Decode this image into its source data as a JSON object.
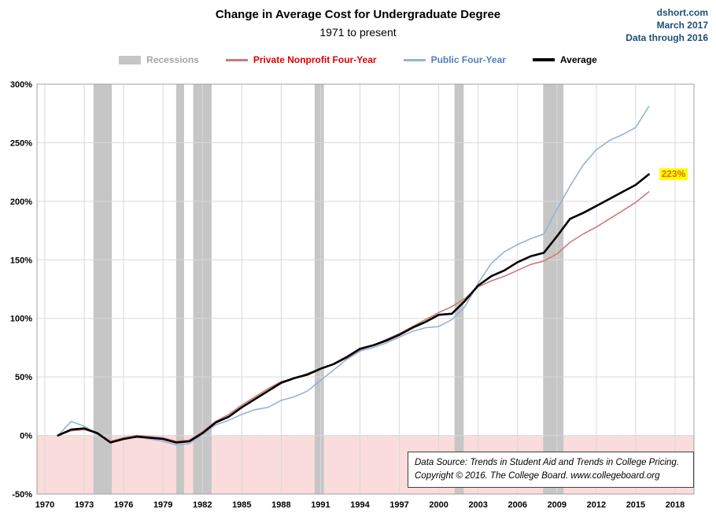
{
  "header": {
    "title": "Change in Average Cost for Undergraduate Degree",
    "subtitle": "1971 to present",
    "site": "dshort.com",
    "date": "March 2017",
    "note": "Data through 2016",
    "corner_color": "#1f4e79"
  },
  "legend": [
    {
      "label": "Recessions",
      "type": "band",
      "swatch_color": "#c6c6c6",
      "text_color": "#a6a6a6"
    },
    {
      "label": "Private Nonprofit Four-Year",
      "type": "line",
      "swatch_color": "#cc7a78",
      "text_color": "#e00000"
    },
    {
      "label": "Public Four-Year",
      "type": "line",
      "swatch_color": "#95b3d7",
      "text_color": "#4f81bd"
    },
    {
      "label": "Average",
      "type": "line-thick",
      "swatch_color": "#000000",
      "text_color": "#000000"
    }
  ],
  "annotation": {
    "label": "223%",
    "year": 2016,
    "value": 223,
    "bg": "#ffff00",
    "color": "#e26b0a"
  },
  "source_box": {
    "line1": "Data Source: Trends in Student Aid and Trends in College Pricing.",
    "line2": "Copyright © 2016. The College Board. www.collegeboard.org"
  },
  "chart_data": {
    "type": "line",
    "title": "Change in Average Cost for Undergraduate Degree",
    "subtitle": "1971 to present",
    "xlabel": "",
    "ylabel": "",
    "xlim": [
      1970,
      2018
    ],
    "ylim": [
      -50,
      300
    ],
    "x_ticks": [
      1970,
      1973,
      1976,
      1979,
      1982,
      1985,
      1988,
      1991,
      1994,
      1997,
      2000,
      2003,
      2006,
      2009,
      2012,
      2015,
      2018
    ],
    "y_ticks": [
      300,
      250,
      200,
      150,
      100,
      50,
      0,
      -50
    ],
    "y_tick_suffix": "%",
    "grid": true,
    "grid_color": "#d9d9d9",
    "axis_color": "#a0a0a0",
    "negative_region_color": "#fadcdc",
    "recession_color": "#c6c6c6",
    "legend_position": "top",
    "x": [
      1971,
      1972,
      1973,
      1974,
      1975,
      1976,
      1977,
      1978,
      1979,
      1980,
      1981,
      1982,
      1983,
      1984,
      1985,
      1986,
      1987,
      1988,
      1989,
      1990,
      1991,
      1992,
      1993,
      1994,
      1995,
      1996,
      1997,
      1998,
      1999,
      2000,
      2001,
      2002,
      2003,
      2004,
      2005,
      2006,
      2007,
      2008,
      2009,
      2010,
      2011,
      2012,
      2013,
      2014,
      2015,
      2016
    ],
    "series": [
      {
        "name": "Public Four-Year",
        "color": "#95b3d7",
        "width": 1.6,
        "values": [
          0,
          12,
          8,
          1,
          -5,
          -3,
          -1,
          -3,
          -5,
          -8,
          -7,
          1,
          9,
          13,
          18,
          22,
          24,
          30,
          33,
          38,
          47,
          56,
          65,
          72,
          75,
          79,
          84,
          89,
          92,
          93,
          99,
          110,
          130,
          147,
          157,
          163,
          168,
          172,
          193,
          213,
          231,
          244,
          252,
          257,
          263,
          281
        ]
      },
      {
        "name": "Private Nonprofit Four-Year",
        "color": "#cc7a78",
        "width": 1.6,
        "values": [
          0,
          4,
          5,
          2,
          -5,
          -2,
          0,
          -1,
          -2,
          -5,
          -4,
          3,
          12,
          18,
          26,
          33,
          40,
          46,
          49,
          53,
          57,
          61,
          66,
          73,
          77,
          82,
          87,
          93,
          99,
          105,
          110,
          117,
          127,
          132,
          136,
          141,
          146,
          149,
          155,
          165,
          172,
          178,
          185,
          192,
          199,
          208
        ]
      },
      {
        "name": "Average",
        "color": "#000000",
        "width": 2.6,
        "values": [
          0,
          5,
          6,
          2,
          -6,
          -3,
          -1,
          -2,
          -3,
          -6,
          -5,
          2,
          11,
          16,
          24,
          31,
          38,
          45,
          49,
          52,
          57,
          61,
          67,
          74,
          77,
          81,
          86,
          92,
          97,
          103,
          104,
          115,
          128,
          136,
          141,
          148,
          153,
          156,
          170,
          185,
          190,
          196,
          202,
          208,
          214,
          223
        ]
      }
    ],
    "recessions": [
      [
        1973.7,
        1975.1
      ],
      [
        1980.0,
        1980.6
      ],
      [
        1981.3,
        1982.7
      ],
      [
        1990.55,
        1991.25
      ],
      [
        2001.2,
        2001.9
      ],
      [
        2007.95,
        2009.5
      ]
    ]
  }
}
